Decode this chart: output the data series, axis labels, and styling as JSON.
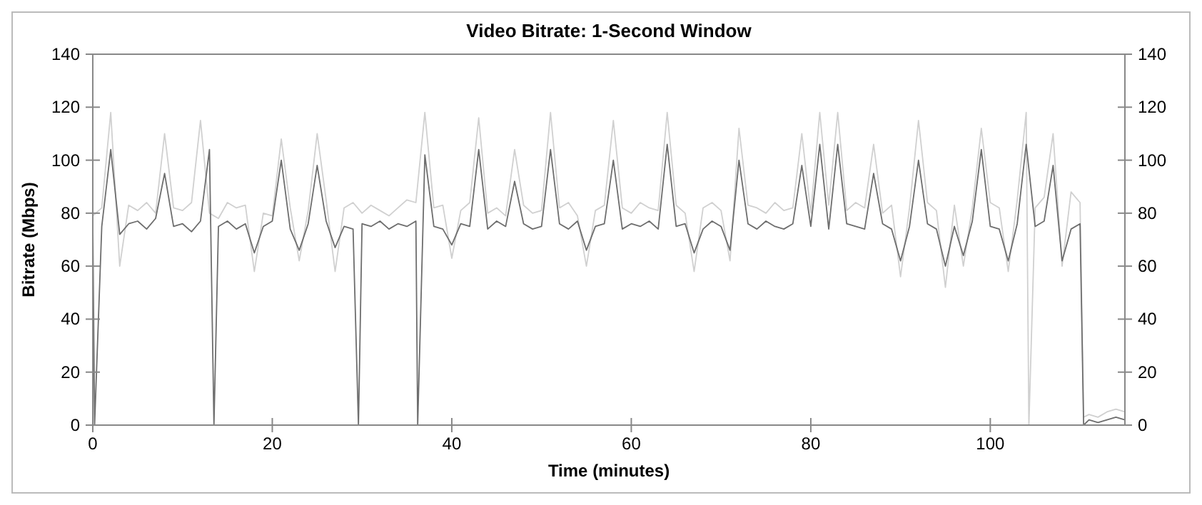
{
  "chart_data": {
    "type": "line",
    "title": "Video Bitrate: 1-Second Window",
    "xlabel": "Time (minutes)",
    "ylabel": "Bitrate (Mbps)",
    "xlim": [
      0,
      115
    ],
    "xticks": [
      0,
      20,
      40,
      60,
      80,
      100
    ],
    "ylim": [
      0,
      140
    ],
    "yticks": [
      0,
      20,
      40,
      60,
      80,
      100,
      120,
      140
    ],
    "y2lim": [
      0,
      140
    ],
    "y2ticks": [
      0,
      20,
      40,
      60,
      80,
      100,
      120,
      140
    ],
    "grid": false,
    "marker": "none",
    "line_style": "solid",
    "series": [
      {
        "color": "#d0d0d0",
        "x": [
          0,
          1,
          2,
          3,
          4,
          5,
          6,
          7,
          8,
          9,
          10,
          11,
          12,
          13,
          14,
          15,
          16,
          17,
          18,
          19,
          20,
          21,
          22,
          23,
          24,
          25,
          26,
          27,
          28,
          29,
          30,
          31,
          32,
          33,
          34,
          35,
          36,
          37,
          38,
          39,
          40,
          41,
          42,
          43,
          44,
          45,
          46,
          47,
          48,
          49,
          50,
          51,
          52,
          53,
          54,
          55,
          56,
          57,
          58,
          59,
          60,
          61,
          62,
          63,
          64,
          65,
          66,
          67,
          68,
          69,
          70,
          71,
          72,
          73,
          74,
          75,
          76,
          77,
          78,
          79,
          80,
          81,
          82,
          83,
          84,
          85,
          86,
          87,
          88,
          89,
          90,
          91,
          92,
          93,
          94,
          95,
          96,
          97,
          98,
          99,
          100,
          101,
          102,
          103,
          104,
          104.3,
          105,
          106,
          107,
          108,
          109,
          110,
          110.4,
          111,
          112,
          113,
          114,
          115
        ],
        "values": [
          79,
          82,
          118,
          60,
          83,
          81,
          84,
          80,
          110,
          82,
          81,
          84,
          115,
          80,
          78,
          84,
          82,
          83,
          58,
          80,
          79,
          108,
          82,
          62,
          81,
          110,
          85,
          58,
          82,
          84,
          80,
          83,
          81,
          79,
          82,
          85,
          84,
          118,
          82,
          83,
          63,
          81,
          84,
          116,
          80,
          82,
          79,
          104,
          83,
          80,
          81,
          118,
          82,
          84,
          79,
          60,
          81,
          83,
          115,
          82,
          80,
          84,
          82,
          81,
          118,
          83,
          80,
          58,
          82,
          84,
          81,
          62,
          112,
          83,
          82,
          80,
          84,
          81,
          82,
          110,
          80,
          118,
          83,
          118,
          81,
          84,
          82,
          106,
          80,
          83,
          56,
          82,
          115,
          84,
          81,
          52,
          83,
          60,
          82,
          112,
          84,
          82,
          58,
          85,
          118,
          0,
          82,
          86,
          110,
          60,
          88,
          84,
          3,
          4,
          3,
          5,
          6,
          5
        ]
      },
      {
        "color": "#6e6e6e",
        "x": [
          0,
          0.2,
          1,
          2,
          3,
          4,
          5,
          6,
          7,
          8,
          9,
          10,
          11,
          12,
          13,
          13.5,
          14,
          15,
          16,
          17,
          18,
          19,
          20,
          21,
          22,
          23,
          24,
          25,
          26,
          27,
          28,
          29,
          29.6,
          30,
          31,
          32,
          33,
          34,
          35,
          36,
          36.2,
          37,
          38,
          39,
          40,
          41,
          42,
          43,
          44,
          45,
          46,
          47,
          48,
          49,
          50,
          51,
          52,
          53,
          54,
          55,
          56,
          57,
          58,
          59,
          60,
          61,
          62,
          63,
          64,
          65,
          66,
          67,
          68,
          69,
          70,
          71,
          72,
          73,
          74,
          75,
          76,
          77,
          78,
          79,
          80,
          81,
          82,
          83,
          84,
          85,
          86,
          87,
          88,
          89,
          90,
          91,
          92,
          93,
          94,
          95,
          96,
          97,
          98,
          99,
          100,
          101,
          102,
          103,
          104,
          105,
          106,
          107,
          108,
          109,
          110,
          110.4,
          111,
          112,
          113,
          114,
          115
        ],
        "values": [
          76,
          0,
          75,
          104,
          72,
          76,
          77,
          74,
          78,
          95,
          75,
          76,
          73,
          77,
          104,
          0,
          75,
          77,
          74,
          76,
          65,
          75,
          77,
          100,
          74,
          66,
          76,
          98,
          77,
          67,
          75,
          74,
          0,
          76,
          75,
          77,
          74,
          76,
          75,
          77,
          0,
          102,
          75,
          74,
          68,
          76,
          75,
          104,
          74,
          77,
          75,
          92,
          76,
          74,
          75,
          104,
          76,
          74,
          77,
          66,
          75,
          76,
          100,
          74,
          76,
          75,
          77,
          74,
          106,
          75,
          76,
          65,
          74,
          77,
          75,
          66,
          100,
          76,
          74,
          77,
          75,
          74,
          76,
          98,
          75,
          106,
          74,
          106,
          76,
          75,
          74,
          95,
          76,
          74,
          62,
          75,
          100,
          76,
          74,
          60,
          75,
          64,
          77,
          104,
          75,
          74,
          62,
          76,
          106,
          75,
          77,
          98,
          62,
          74,
          76,
          0,
          2,
          1,
          2,
          3,
          2
        ]
      }
    ]
  }
}
